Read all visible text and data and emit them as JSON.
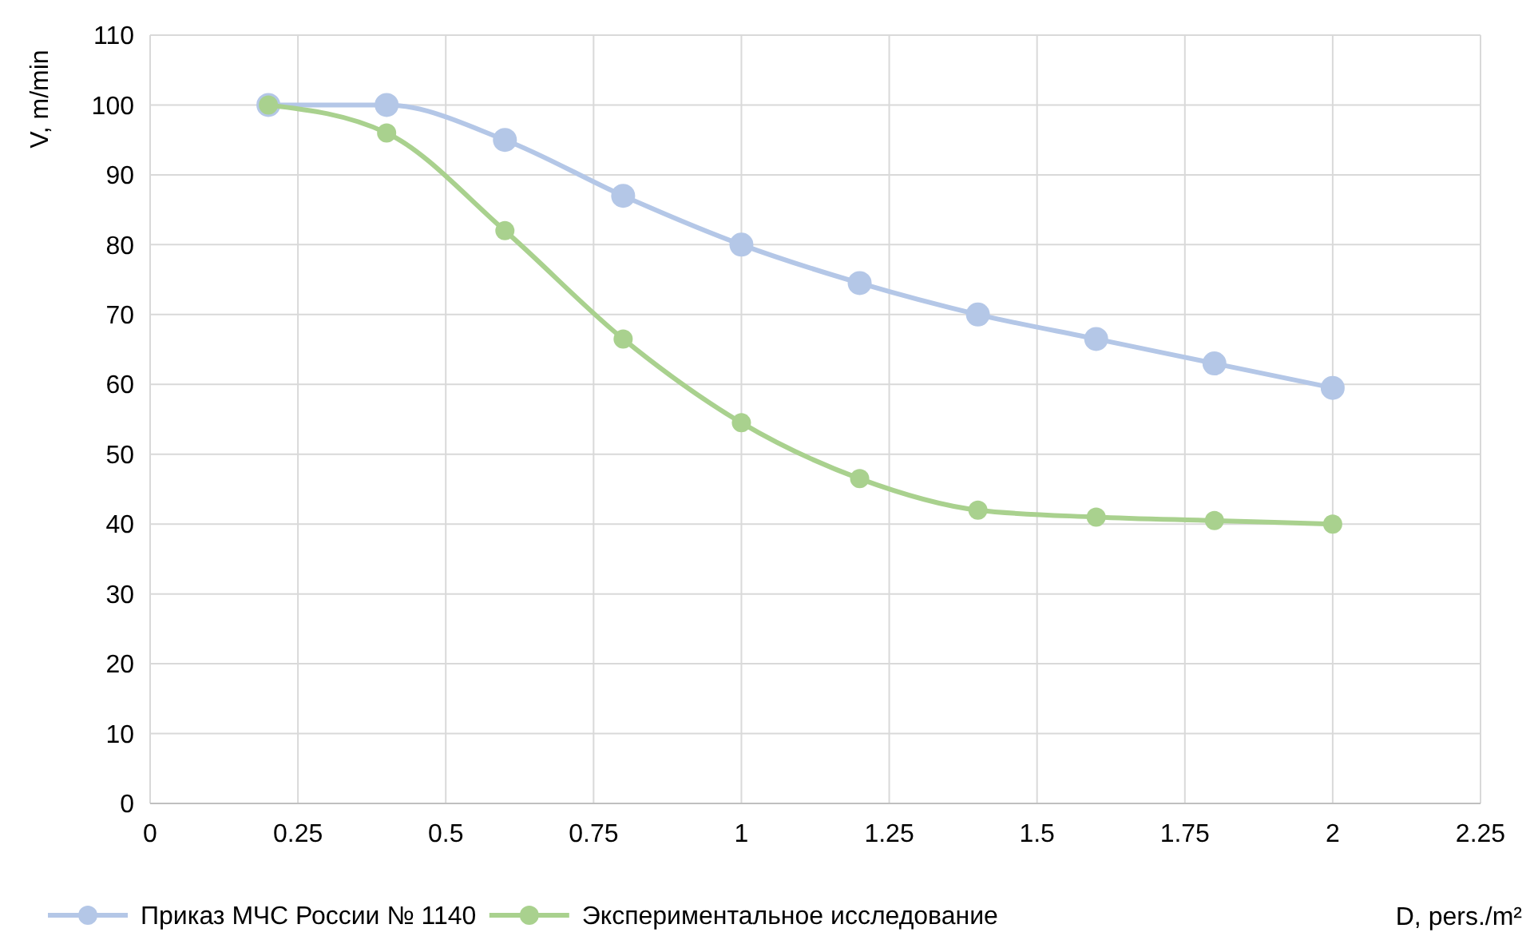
{
  "chart_data": {
    "type": "line",
    "xlabel": "D, pers./m²",
    "ylabel": "V, m/min",
    "x": [
      0.2,
      0.4,
      0.6,
      0.8,
      1,
      1.2,
      1.4,
      1.6,
      1.8,
      2
    ],
    "series": [
      {
        "name": "Приказ МЧС России № 1140",
        "color": "#b4c7e7",
        "values": [
          100,
          100,
          95,
          87,
          80,
          74.5,
          70,
          66.5,
          63,
          59.5
        ]
      },
      {
        "name": "Экспериментальное исследование",
        "color": "#a9d18e",
        "values": [
          100,
          96,
          82,
          66.5,
          54.5,
          46.5,
          42,
          41,
          40.5,
          40
        ]
      }
    ],
    "xlim": [
      0,
      2.25
    ],
    "xticks": [
      0,
      0.25,
      0.5,
      0.75,
      1,
      1.25,
      1.5,
      1.75,
      2,
      2.25
    ],
    "ylim": [
      0,
      110
    ],
    "yticks": [
      0,
      10,
      20,
      30,
      40,
      50,
      60,
      70,
      80,
      90,
      100,
      110
    ],
    "grid": true,
    "legend": "bottom",
    "marker": "circle",
    "line_style": "solid"
  }
}
